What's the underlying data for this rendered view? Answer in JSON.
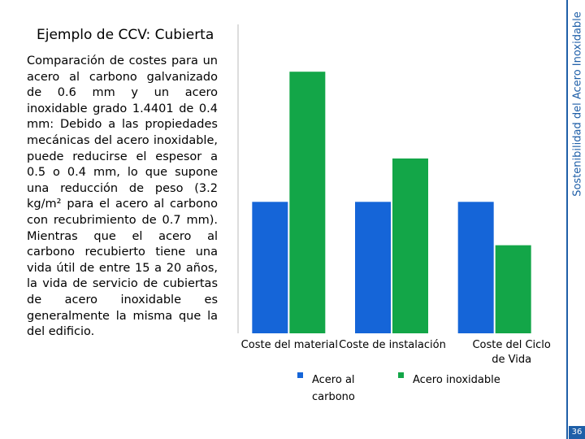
{
  "slide": {
    "title": "Ejemplo de CCV: Cubierta",
    "body": "Comparación de costes para un acero al carbono galvanizado de 0.6 mm y un acero inoxidable grado 1.4401 de 0.4 mm: Debido a las propiedades mecánicas del acero inoxidable, puede reducirse el espesor a 0.5 o 0.4 mm, lo que supone una reducción de peso (3.2 kg/m² para el acero al carbono con recubrimiento de 0.7 mm). Mientras que el acero al carbono recubierto tiene una vida útil de entre 15 a 20 años, la vida de servicio de cubiertas de acero inoxidable es generalmente la misma que la del edificio.",
    "sidebar": "Sostenibilidad del Acero Inoxidable",
    "page_number": "36"
  },
  "chart_data": {
    "type": "bar",
    "categories": [
      "Coste del material",
      "Coste de instalación",
      "Coste del Ciclo de Vida"
    ],
    "series": [
      {
        "name": "Acero al carbono",
        "color": "#1565d8",
        "values": [
          100,
          100,
          100
        ]
      },
      {
        "name": "Acero inoxidable",
        "color": "#13a648",
        "values": [
          199,
          133,
          67
        ]
      }
    ],
    "ylim": [
      0,
      235
    ]
  }
}
